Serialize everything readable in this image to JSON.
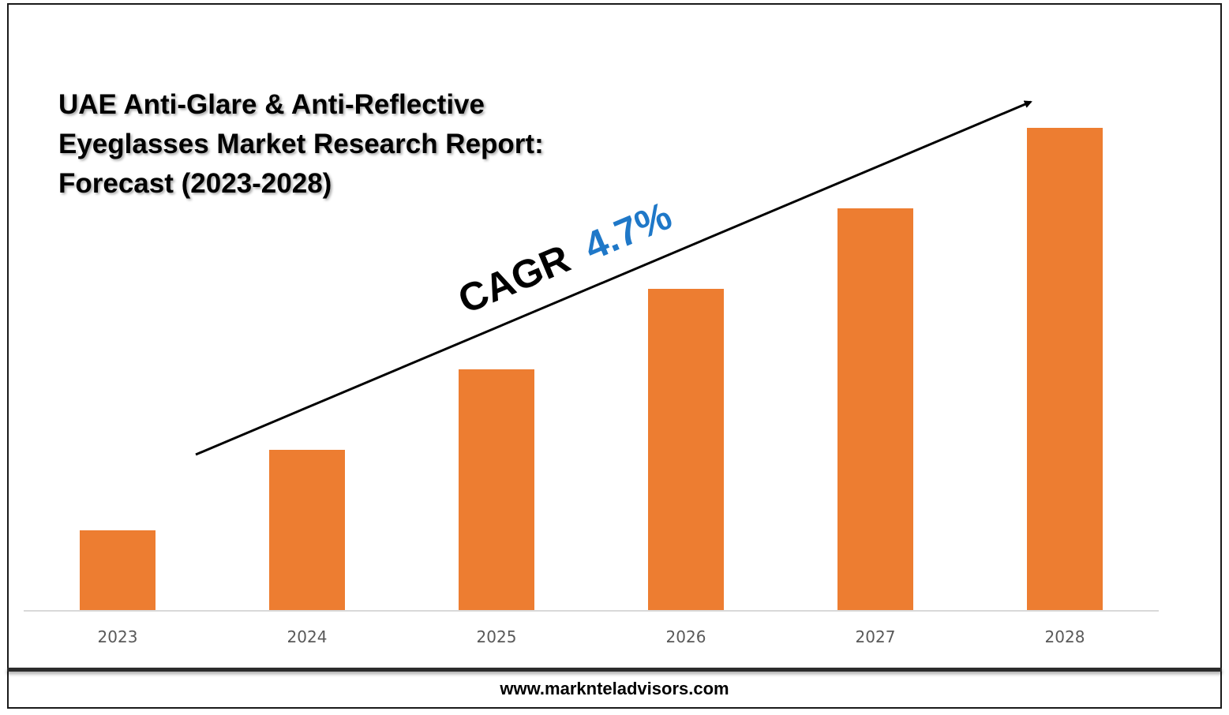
{
  "title_lines": [
    "UAE Anti-Glare & Anti-Reflective",
    "Eyeglasses Market Research Report:",
    "Forecast (2023-2028)"
  ],
  "cagr": {
    "label": "CAGR",
    "value": "4.7%",
    "label_color": "#000000",
    "value_color": "#1f78c8"
  },
  "footer": {
    "url": "www.marknteladvisors.com"
  },
  "chart_data": {
    "type": "bar",
    "categories": [
      "2023",
      "2024",
      "2025",
      "2026",
      "2027",
      "2028"
    ],
    "values": [
      1,
      2,
      3,
      4,
      5,
      6
    ],
    "bar_color": "#ed7d31",
    "xlabel": "",
    "ylabel": "",
    "ylim": [
      0,
      6
    ],
    "grid": false,
    "legend": "none"
  }
}
